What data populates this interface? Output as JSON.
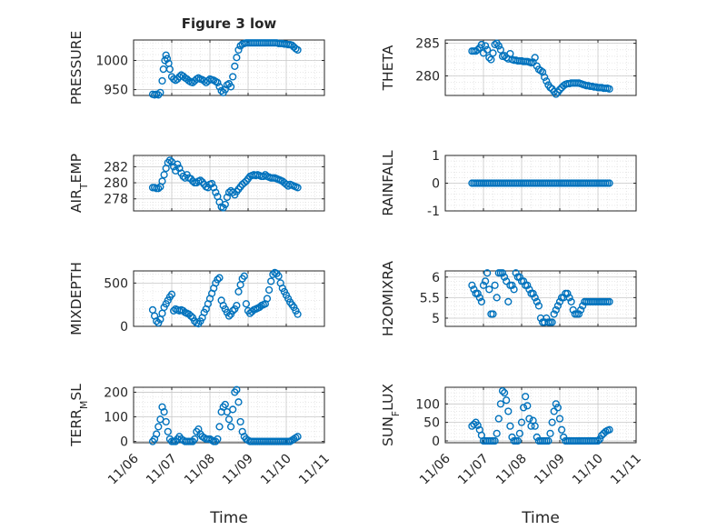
{
  "figure": {
    "title": "Figure 3 low",
    "xlabel": "Time",
    "x_ticks": [
      "11/06",
      "11/07",
      "11/08",
      "11/09",
      "11/10",
      "11/11"
    ],
    "marker_color": "#0072BD"
  },
  "chart_data": [
    {
      "type": "scatter",
      "title": "Figure 3 low",
      "ylabel": "PRESSURE",
      "xlabel": "",
      "xlim": [
        0,
        5
      ],
      "ylim": [
        940,
        1035
      ],
      "yticks": [
        "950",
        "1000"
      ],
      "ytick_values": [
        950,
        1000
      ],
      "x": [
        0.5,
        0.55,
        0.6,
        0.65,
        0.7,
        0.75,
        0.78,
        0.82,
        0.85,
        0.88,
        0.92,
        0.95,
        1.0,
        1.05,
        1.1,
        1.15,
        1.2,
        1.25,
        1.3,
        1.35,
        1.4,
        1.45,
        1.5,
        1.55,
        1.6,
        1.65,
        1.7,
        1.75,
        1.8,
        1.85,
        1.9,
        1.95,
        2.0,
        2.05,
        2.1,
        2.15,
        2.2,
        2.25,
        2.3,
        2.35,
        2.4,
        2.45,
        2.5,
        2.55,
        2.6,
        2.65,
        2.7,
        2.75,
        2.8,
        2.85,
        2.9,
        2.95,
        3.0,
        3.05,
        3.1,
        3.15,
        3.2,
        3.25,
        3.3,
        3.35,
        3.4,
        3.45,
        3.5,
        3.55,
        3.6,
        3.65,
        3.7,
        3.75,
        3.8,
        3.85,
        3.9,
        3.95,
        4.0,
        4.05,
        4.1,
        4.15,
        4.2,
        4.25,
        4.3
      ],
      "y": [
        942,
        941,
        942,
        941,
        945,
        965,
        985,
        1000,
        1009,
        1003,
        995,
        985,
        972,
        968,
        966,
        968,
        972,
        975,
        973,
        970,
        968,
        965,
        963,
        962,
        965,
        968,
        970,
        968,
        967,
        965,
        962,
        965,
        968,
        967,
        966,
        964,
        962,
        955,
        948,
        945,
        950,
        958,
        960,
        955,
        972,
        990,
        1005,
        1018,
        1025,
        1028,
        1029,
        1030,
        1030,
        1030,
        1030,
        1030,
        1030,
        1030,
        1030,
        1030,
        1030,
        1030,
        1030,
        1030,
        1030,
        1030,
        1030,
        1030,
        1029,
        1029,
        1029,
        1028,
        1028,
        1027,
        1027,
        1026,
        1023,
        1020,
        1018
      ]
    },
    {
      "type": "scatter",
      "ylabel": "THETA",
      "xlabel": "",
      "xlim": [
        0,
        5
      ],
      "ylim": [
        277,
        285.5
      ],
      "yticks": [
        "280",
        "285"
      ],
      "ytick_values": [
        280,
        285
      ],
      "x": [
        0.7,
        0.75,
        0.8,
        0.85,
        0.9,
        0.95,
        1.0,
        1.05,
        1.1,
        1.15,
        1.2,
        1.25,
        1.3,
        1.35,
        1.4,
        1.45,
        1.5,
        1.55,
        1.6,
        1.65,
        1.7,
        1.75,
        1.8,
        1.85,
        1.9,
        1.95,
        2.0,
        2.05,
        2.1,
        2.15,
        2.2,
        2.25,
        2.3,
        2.35,
        2.4,
        2.45,
        2.5,
        2.55,
        2.6,
        2.65,
        2.7,
        2.75,
        2.8,
        2.85,
        2.9,
        2.95,
        3.0,
        3.05,
        3.1,
        3.15,
        3.2,
        3.25,
        3.3,
        3.35,
        3.4,
        3.45,
        3.5,
        3.55,
        3.6,
        3.65,
        3.7,
        3.75,
        3.8,
        3.85,
        3.9,
        3.95,
        4.0,
        4.05,
        4.1,
        4.15,
        4.2,
        4.25,
        4.3
      ],
      "y": [
        283.8,
        283.8,
        283.8,
        284.0,
        284.3,
        284.8,
        283.5,
        284.6,
        284.0,
        282.8,
        282.5,
        283.5,
        284.8,
        285.0,
        284.6,
        284.0,
        283.0,
        283.1,
        282.8,
        282.6,
        283.4,
        282.5,
        282.4,
        282.4,
        282.3,
        282.3,
        282.3,
        282.2,
        282.2,
        282.2,
        282.1,
        282.0,
        282.1,
        282.8,
        281.5,
        281.0,
        280.8,
        280.6,
        279.8,
        279.2,
        278.6,
        278.2,
        278.0,
        277.6,
        277.2,
        277.5,
        277.9,
        278.2,
        278.5,
        278.7,
        278.8,
        278.8,
        278.9,
        278.9,
        278.9,
        278.9,
        278.9,
        278.8,
        278.7,
        278.6,
        278.5,
        278.5,
        278.4,
        278.4,
        278.3,
        278.3,
        278.2,
        278.2,
        278.2,
        278.1,
        278.1,
        278.1,
        278.0
      ]
    },
    {
      "type": "scatter",
      "ylabel": "AIR_TEMP",
      "xlabel": "",
      "xlim": [
        0,
        5
      ],
      "ylim": [
        276.5,
        283.4
      ],
      "yticks": [
        "278",
        "280",
        "282"
      ],
      "ytick_values": [
        278,
        280,
        282
      ],
      "x": [
        0.5,
        0.55,
        0.6,
        0.65,
        0.7,
        0.75,
        0.8,
        0.85,
        0.9,
        0.95,
        1.0,
        1.05,
        1.1,
        1.15,
        1.2,
        1.25,
        1.3,
        1.35,
        1.4,
        1.45,
        1.5,
        1.55,
        1.6,
        1.65,
        1.7,
        1.75,
        1.8,
        1.85,
        1.9,
        1.95,
        2.0,
        2.05,
        2.1,
        2.15,
        2.2,
        2.25,
        2.3,
        2.35,
        2.4,
        2.45,
        2.5,
        2.55,
        2.6,
        2.65,
        2.7,
        2.75,
        2.8,
        2.85,
        2.9,
        2.95,
        3.0,
        3.05,
        3.1,
        3.15,
        3.2,
        3.25,
        3.3,
        3.35,
        3.4,
        3.45,
        3.5,
        3.55,
        3.6,
        3.65,
        3.7,
        3.75,
        3.8,
        3.85,
        3.9,
        3.95,
        4.0,
        4.05,
        4.1,
        4.15,
        4.2,
        4.25,
        4.3
      ],
      "y": [
        279.4,
        279.4,
        279.3,
        279.3,
        279.5,
        280.2,
        281.0,
        281.8,
        282.5,
        282.8,
        282.6,
        282.0,
        281.5,
        282.3,
        281.8,
        281.2,
        280.8,
        280.6,
        281.0,
        280.6,
        280.5,
        280.2,
        280.0,
        280.0,
        280.2,
        280.3,
        280.1,
        279.8,
        279.5,
        279.4,
        279.8,
        279.9,
        279.4,
        278.8,
        278.3,
        277.6,
        277.0,
        276.9,
        277.3,
        278.2,
        278.8,
        279.0,
        278.8,
        278.5,
        278.9,
        279.2,
        279.5,
        279.8,
        280.0,
        280.2,
        280.5,
        280.8,
        280.9,
        281.0,
        280.9,
        281.0,
        280.9,
        280.8,
        280.8,
        281.0,
        280.8,
        280.7,
        280.6,
        280.6,
        280.6,
        280.5,
        280.4,
        280.3,
        280.2,
        280.0,
        279.8,
        279.6,
        279.8,
        279.7,
        279.6,
        279.5,
        279.4
      ]
    },
    {
      "type": "scatter",
      "ylabel": "RAINFALL",
      "xlabel": "",
      "xlim": [
        0,
        5
      ],
      "ylim": [
        -1,
        1
      ],
      "yticks": [
        "-1",
        "0",
        "1"
      ],
      "ytick_values": [
        -1,
        0,
        1
      ],
      "x": [
        0.7,
        0.75,
        0.8,
        0.85,
        0.9,
        0.95,
        1.0,
        1.05,
        1.1,
        1.15,
        1.2,
        1.25,
        1.3,
        1.35,
        1.4,
        1.45,
        1.5,
        1.55,
        1.6,
        1.65,
        1.7,
        1.75,
        1.8,
        1.85,
        1.9,
        1.95,
        2.0,
        2.05,
        2.1,
        2.15,
        2.2,
        2.25,
        2.3,
        2.35,
        2.4,
        2.45,
        2.5,
        2.55,
        2.6,
        2.65,
        2.7,
        2.75,
        2.8,
        2.85,
        2.9,
        2.95,
        3.0,
        3.05,
        3.1,
        3.15,
        3.2,
        3.25,
        3.3,
        3.35,
        3.4,
        3.45,
        3.5,
        3.55,
        3.6,
        3.65,
        3.7,
        3.75,
        3.8,
        3.85,
        3.9,
        3.95,
        4.0,
        4.05,
        4.1,
        4.15,
        4.2,
        4.25,
        4.3
      ],
      "y": [
        0,
        0,
        0,
        0,
        0,
        0,
        0,
        0,
        0,
        0,
        0,
        0,
        0,
        0,
        0,
        0,
        0,
        0,
        0,
        0,
        0,
        0,
        0,
        0,
        0,
        0,
        0,
        0,
        0,
        0,
        0,
        0,
        0,
        0,
        0,
        0,
        0,
        0,
        0,
        0,
        0,
        0,
        0,
        0,
        0,
        0,
        0,
        0,
        0,
        0,
        0,
        0,
        0,
        0,
        0,
        0,
        0,
        0,
        0,
        0,
        0,
        0,
        0,
        0,
        0,
        0,
        0,
        0,
        0,
        0,
        0,
        0,
        0
      ]
    },
    {
      "type": "scatter",
      "ylabel": "MIXDEPTH",
      "xlabel": "",
      "xlim": [
        0,
        5
      ],
      "ylim": [
        0,
        640
      ],
      "yticks": [
        "0",
        "500"
      ],
      "ytick_values": [
        0,
        500
      ],
      "x": [
        0.5,
        0.55,
        0.6,
        0.65,
        0.7,
        0.75,
        0.8,
        0.85,
        0.9,
        0.95,
        1.0,
        1.05,
        1.1,
        1.15,
        1.2,
        1.25,
        1.3,
        1.35,
        1.4,
        1.45,
        1.5,
        1.55,
        1.6,
        1.65,
        1.7,
        1.75,
        1.8,
        1.85,
        1.9,
        1.95,
        2.0,
        2.05,
        2.1,
        2.15,
        2.2,
        2.25,
        2.3,
        2.35,
        2.4,
        2.45,
        2.5,
        2.55,
        2.6,
        2.65,
        2.7,
        2.75,
        2.8,
        2.85,
        2.9,
        2.95,
        3.0,
        3.05,
        3.1,
        3.15,
        3.2,
        3.25,
        3.3,
        3.35,
        3.4,
        3.45,
        3.5,
        3.55,
        3.6,
        3.65,
        3.7,
        3.75,
        3.8,
        3.85,
        3.9,
        3.95,
        4.0,
        4.05,
        4.1,
        4.15,
        4.2,
        4.25,
        4.3
      ],
      "y": [
        190,
        120,
        60,
        40,
        80,
        150,
        220,
        260,
        300,
        340,
        370,
        180,
        200,
        190,
        180,
        190,
        180,
        160,
        150,
        140,
        120,
        100,
        60,
        40,
        30,
        60,
        100,
        160,
        200,
        260,
        320,
        380,
        440,
        500,
        540,
        560,
        300,
        240,
        200,
        160,
        120,
        140,
        180,
        200,
        240,
        400,
        480,
        550,
        580,
        260,
        180,
        150,
        170,
        190,
        200,
        210,
        220,
        240,
        250,
        260,
        320,
        420,
        520,
        600,
        620,
        610,
        580,
        500,
        440,
        400,
        360,
        320,
        280,
        250,
        220,
        180,
        140
      ]
    },
    {
      "type": "scatter",
      "ylabel": "H2OMIXRA",
      "xlabel": "",
      "xlim": [
        0,
        5
      ],
      "ylim": [
        4.8,
        6.15
      ],
      "yticks": [
        "5",
        "5.5",
        "6"
      ],
      "ytick_values": [
        5,
        5.5,
        6
      ],
      "x": [
        0.7,
        0.75,
        0.8,
        0.85,
        0.9,
        0.95,
        1.0,
        1.05,
        1.1,
        1.15,
        1.2,
        1.25,
        1.3,
        1.35,
        1.4,
        1.45,
        1.5,
        1.55,
        1.6,
        1.65,
        1.7,
        1.75,
        1.8,
        1.85,
        1.9,
        1.95,
        2.0,
        2.05,
        2.1,
        2.15,
        2.2,
        2.25,
        2.3,
        2.35,
        2.4,
        2.45,
        2.5,
        2.55,
        2.6,
        2.65,
        2.7,
        2.75,
        2.8,
        2.85,
        2.9,
        2.95,
        3.0,
        3.05,
        3.1,
        3.15,
        3.2,
        3.25,
        3.3,
        3.35,
        3.4,
        3.45,
        3.5,
        3.55,
        3.6,
        3.65,
        3.7,
        3.75,
        3.8,
        3.85,
        3.9,
        3.95,
        4.0,
        4.05,
        4.1,
        4.15,
        4.2,
        4.25,
        4.3
      ],
      "y": [
        5.8,
        5.7,
        5.6,
        5.6,
        5.5,
        5.4,
        5.8,
        5.9,
        6.1,
        5.7,
        5.1,
        5.1,
        5.8,
        5.5,
        6.1,
        6.1,
        6.1,
        6.0,
        5.9,
        5.4,
        5.8,
        5.8,
        5.7,
        6.1,
        6.0,
        6.0,
        5.9,
        5.9,
        5.8,
        5.8,
        5.7,
        5.6,
        5.6,
        5.5,
        5.4,
        5.3,
        5.0,
        4.9,
        4.9,
        5.0,
        4.9,
        4.9,
        4.9,
        5.1,
        5.2,
        5.3,
        5.4,
        5.5,
        5.5,
        5.6,
        5.6,
        5.5,
        5.4,
        5.2,
        5.1,
        5.1,
        5.1,
        5.2,
        5.3,
        5.4,
        5.4,
        5.4,
        5.4,
        5.4,
        5.4,
        5.4,
        5.4,
        5.4,
        5.4,
        5.4,
        5.4,
        5.4,
        5.4
      ]
    },
    {
      "type": "scatter",
      "ylabel": "TERR_MSL",
      "xlabel": "Time",
      "xlim": [
        0,
        5
      ],
      "ylim": [
        -5,
        220
      ],
      "yticks": [
        "0",
        "100",
        "200"
      ],
      "ytick_values": [
        0,
        100,
        200
      ],
      "x": [
        0.5,
        0.55,
        0.6,
        0.65,
        0.7,
        0.75,
        0.8,
        0.85,
        0.9,
        0.95,
        1.0,
        1.05,
        1.1,
        1.15,
        1.2,
        1.25,
        1.3,
        1.35,
        1.4,
        1.45,
        1.5,
        1.55,
        1.6,
        1.65,
        1.7,
        1.75,
        1.8,
        1.85,
        1.9,
        1.95,
        2.0,
        2.05,
        2.1,
        2.15,
        2.2,
        2.25,
        2.3,
        2.35,
        2.4,
        2.45,
        2.5,
        2.55,
        2.6,
        2.65,
        2.7,
        2.75,
        2.8,
        2.85,
        2.9,
        2.95,
        3.0,
        3.05,
        3.1,
        3.15,
        3.2,
        3.25,
        3.3,
        3.35,
        3.4,
        3.45,
        3.5,
        3.55,
        3.6,
        3.65,
        3.7,
        3.75,
        3.8,
        3.85,
        3.9,
        3.95,
        4.0,
        4.05,
        4.1,
        4.15,
        4.2,
        4.25,
        4.3
      ],
      "y": [
        0,
        10,
        30,
        60,
        90,
        140,
        120,
        80,
        40,
        10,
        0,
        0,
        0,
        10,
        20,
        10,
        5,
        0,
        0,
        0,
        0,
        0,
        10,
        40,
        50,
        30,
        20,
        15,
        10,
        10,
        10,
        5,
        0,
        0,
        10,
        60,
        120,
        140,
        150,
        120,
        90,
        60,
        130,
        200,
        210,
        160,
        80,
        40,
        20,
        10,
        5,
        0,
        0,
        0,
        0,
        0,
        0,
        0,
        0,
        0,
        0,
        0,
        0,
        0,
        0,
        0,
        0,
        0,
        0,
        0,
        0,
        0,
        0,
        5,
        10,
        15,
        20
      ]
    },
    {
      "type": "scatter",
      "ylabel": "SUN_FLUX",
      "xlabel": "Time",
      "xlim": [
        0,
        5
      ],
      "ylim": [
        -5,
        145
      ],
      "yticks": [
        "0",
        "50",
        "100"
      ],
      "ytick_values": [
        0,
        50,
        100
      ],
      "x": [
        0.7,
        0.75,
        0.8,
        0.85,
        0.9,
        0.95,
        1.0,
        1.05,
        1.1,
        1.15,
        1.2,
        1.25,
        1.3,
        1.35,
        1.4,
        1.45,
        1.5,
        1.55,
        1.6,
        1.65,
        1.7,
        1.75,
        1.8,
        1.85,
        1.9,
        1.95,
        2.0,
        2.05,
        2.1,
        2.15,
        2.2,
        2.25,
        2.3,
        2.35,
        2.4,
        2.45,
        2.5,
        2.55,
        2.6,
        2.65,
        2.7,
        2.75,
        2.8,
        2.85,
        2.9,
        2.95,
        3.0,
        3.05,
        3.1,
        3.15,
        3.2,
        3.25,
        3.3,
        3.35,
        3.4,
        3.45,
        3.5,
        3.55,
        3.6,
        3.65,
        3.7,
        3.75,
        3.8,
        3.85,
        3.9,
        3.95,
        4.0,
        4.05,
        4.1,
        4.15,
        4.2,
        4.25,
        4.3
      ],
      "y": [
        40,
        45,
        50,
        42,
        30,
        15,
        0,
        0,
        0,
        0,
        0,
        0,
        0,
        20,
        60,
        100,
        135,
        130,
        110,
        80,
        40,
        10,
        0,
        0,
        0,
        20,
        50,
        90,
        120,
        95,
        60,
        40,
        55,
        40,
        10,
        0,
        0,
        0,
        0,
        0,
        0,
        20,
        50,
        80,
        100,
        90,
        60,
        30,
        10,
        0,
        0,
        0,
        0,
        0,
        0,
        0,
        0,
        0,
        0,
        0,
        0,
        0,
        0,
        0,
        0,
        0,
        0,
        5,
        15,
        20,
        25,
        28,
        30
      ]
    }
  ]
}
